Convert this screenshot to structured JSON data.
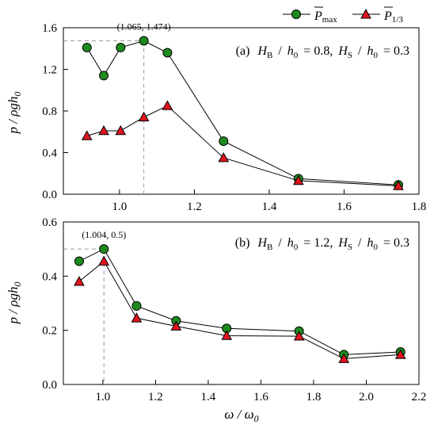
{
  "colors": {
    "max_fill": "#1e8a1e",
    "third_fill": "#e0141e",
    "marker_stroke": "#000000",
    "guide": "#9a9a9a"
  },
  "legend": {
    "max_label": "P̄max",
    "third_label": "P̄1/3",
    "placement": "top-right"
  },
  "chart_data": [
    {
      "type": "line",
      "panel_label": "(a) HB / h0 = 0.8, HS / h0 = 0.3",
      "panel_parts": {
        "a": "(a)",
        "hb": "H",
        "hb_sub": "B",
        "h0": "h",
        "h0_sub": "0",
        "eq1": "= 0.8,",
        "hs": "H",
        "hs_sub": "S",
        "eq2": "= 0.3",
        "slash": "/"
      },
      "ylabel": "p / ρgh0",
      "xlabel": "",
      "xlim": [
        0.85,
        1.8
      ],
      "ylim": [
        0.0,
        1.6
      ],
      "xticks": [
        "1.0",
        "1.2",
        "1.4",
        "1.6",
        "1.8"
      ],
      "yticks": [
        "0.0",
        "0.4",
        "0.8",
        "1.2",
        "1.6"
      ],
      "grid": false,
      "annotation": {
        "text": "(1.065, 1.474)",
        "x": 1.065,
        "y": 1.474
      },
      "series": [
        {
          "name": "P̄max",
          "marker": "circle",
          "x": [
            0.913,
            0.958,
            1.003,
            1.065,
            1.128,
            1.278,
            1.478,
            1.745
          ],
          "y": [
            1.41,
            1.14,
            1.41,
            1.474,
            1.36,
            0.51,
            0.15,
            0.09
          ]
        },
        {
          "name": "P̄1/3",
          "marker": "triangle",
          "x": [
            0.913,
            0.958,
            1.003,
            1.065,
            1.128,
            1.278,
            1.478,
            1.745
          ],
          "y": [
            0.56,
            0.61,
            0.61,
            0.74,
            0.85,
            0.35,
            0.13,
            0.08
          ]
        }
      ]
    },
    {
      "type": "line",
      "panel_label": "(b) HB / h0 = 1.2, HS / h0 = 0.3",
      "panel_parts": {
        "a": "(b)",
        "hb": "H",
        "hb_sub": "B",
        "h0": "h",
        "h0_sub": "0",
        "eq1": "= 1.2,",
        "hs": "H",
        "hs_sub": "S",
        "eq2": "= 0.3",
        "slash": "/"
      },
      "ylabel": "p / ρgh0",
      "xlabel": "ω / ω0",
      "xlim": [
        0.85,
        2.2
      ],
      "ylim": [
        0.0,
        0.6
      ],
      "xticks": [
        "1.0",
        "1.2",
        "1.4",
        "1.6",
        "1.8",
        "2.0",
        "2.2"
      ],
      "yticks": [
        "0.0",
        "0.2",
        "0.4",
        "0.6"
      ],
      "grid": false,
      "annotation": {
        "text": "(1.004, 0.5)",
        "x": 1.004,
        "y": 0.5
      },
      "series": [
        {
          "name": "P̄max",
          "marker": "circle",
          "x": [
            0.91,
            1.004,
            1.128,
            1.278,
            1.47,
            1.745,
            1.915,
            2.13
          ],
          "y": [
            0.455,
            0.5,
            0.29,
            0.235,
            0.207,
            0.197,
            0.11,
            0.12
          ]
        },
        {
          "name": "P̄1/3",
          "marker": "triangle",
          "x": [
            0.91,
            1.004,
            1.128,
            1.278,
            1.47,
            1.745,
            1.915,
            2.13
          ],
          "y": [
            0.38,
            0.455,
            0.245,
            0.215,
            0.18,
            0.178,
            0.095,
            0.11
          ]
        }
      ]
    }
  ]
}
